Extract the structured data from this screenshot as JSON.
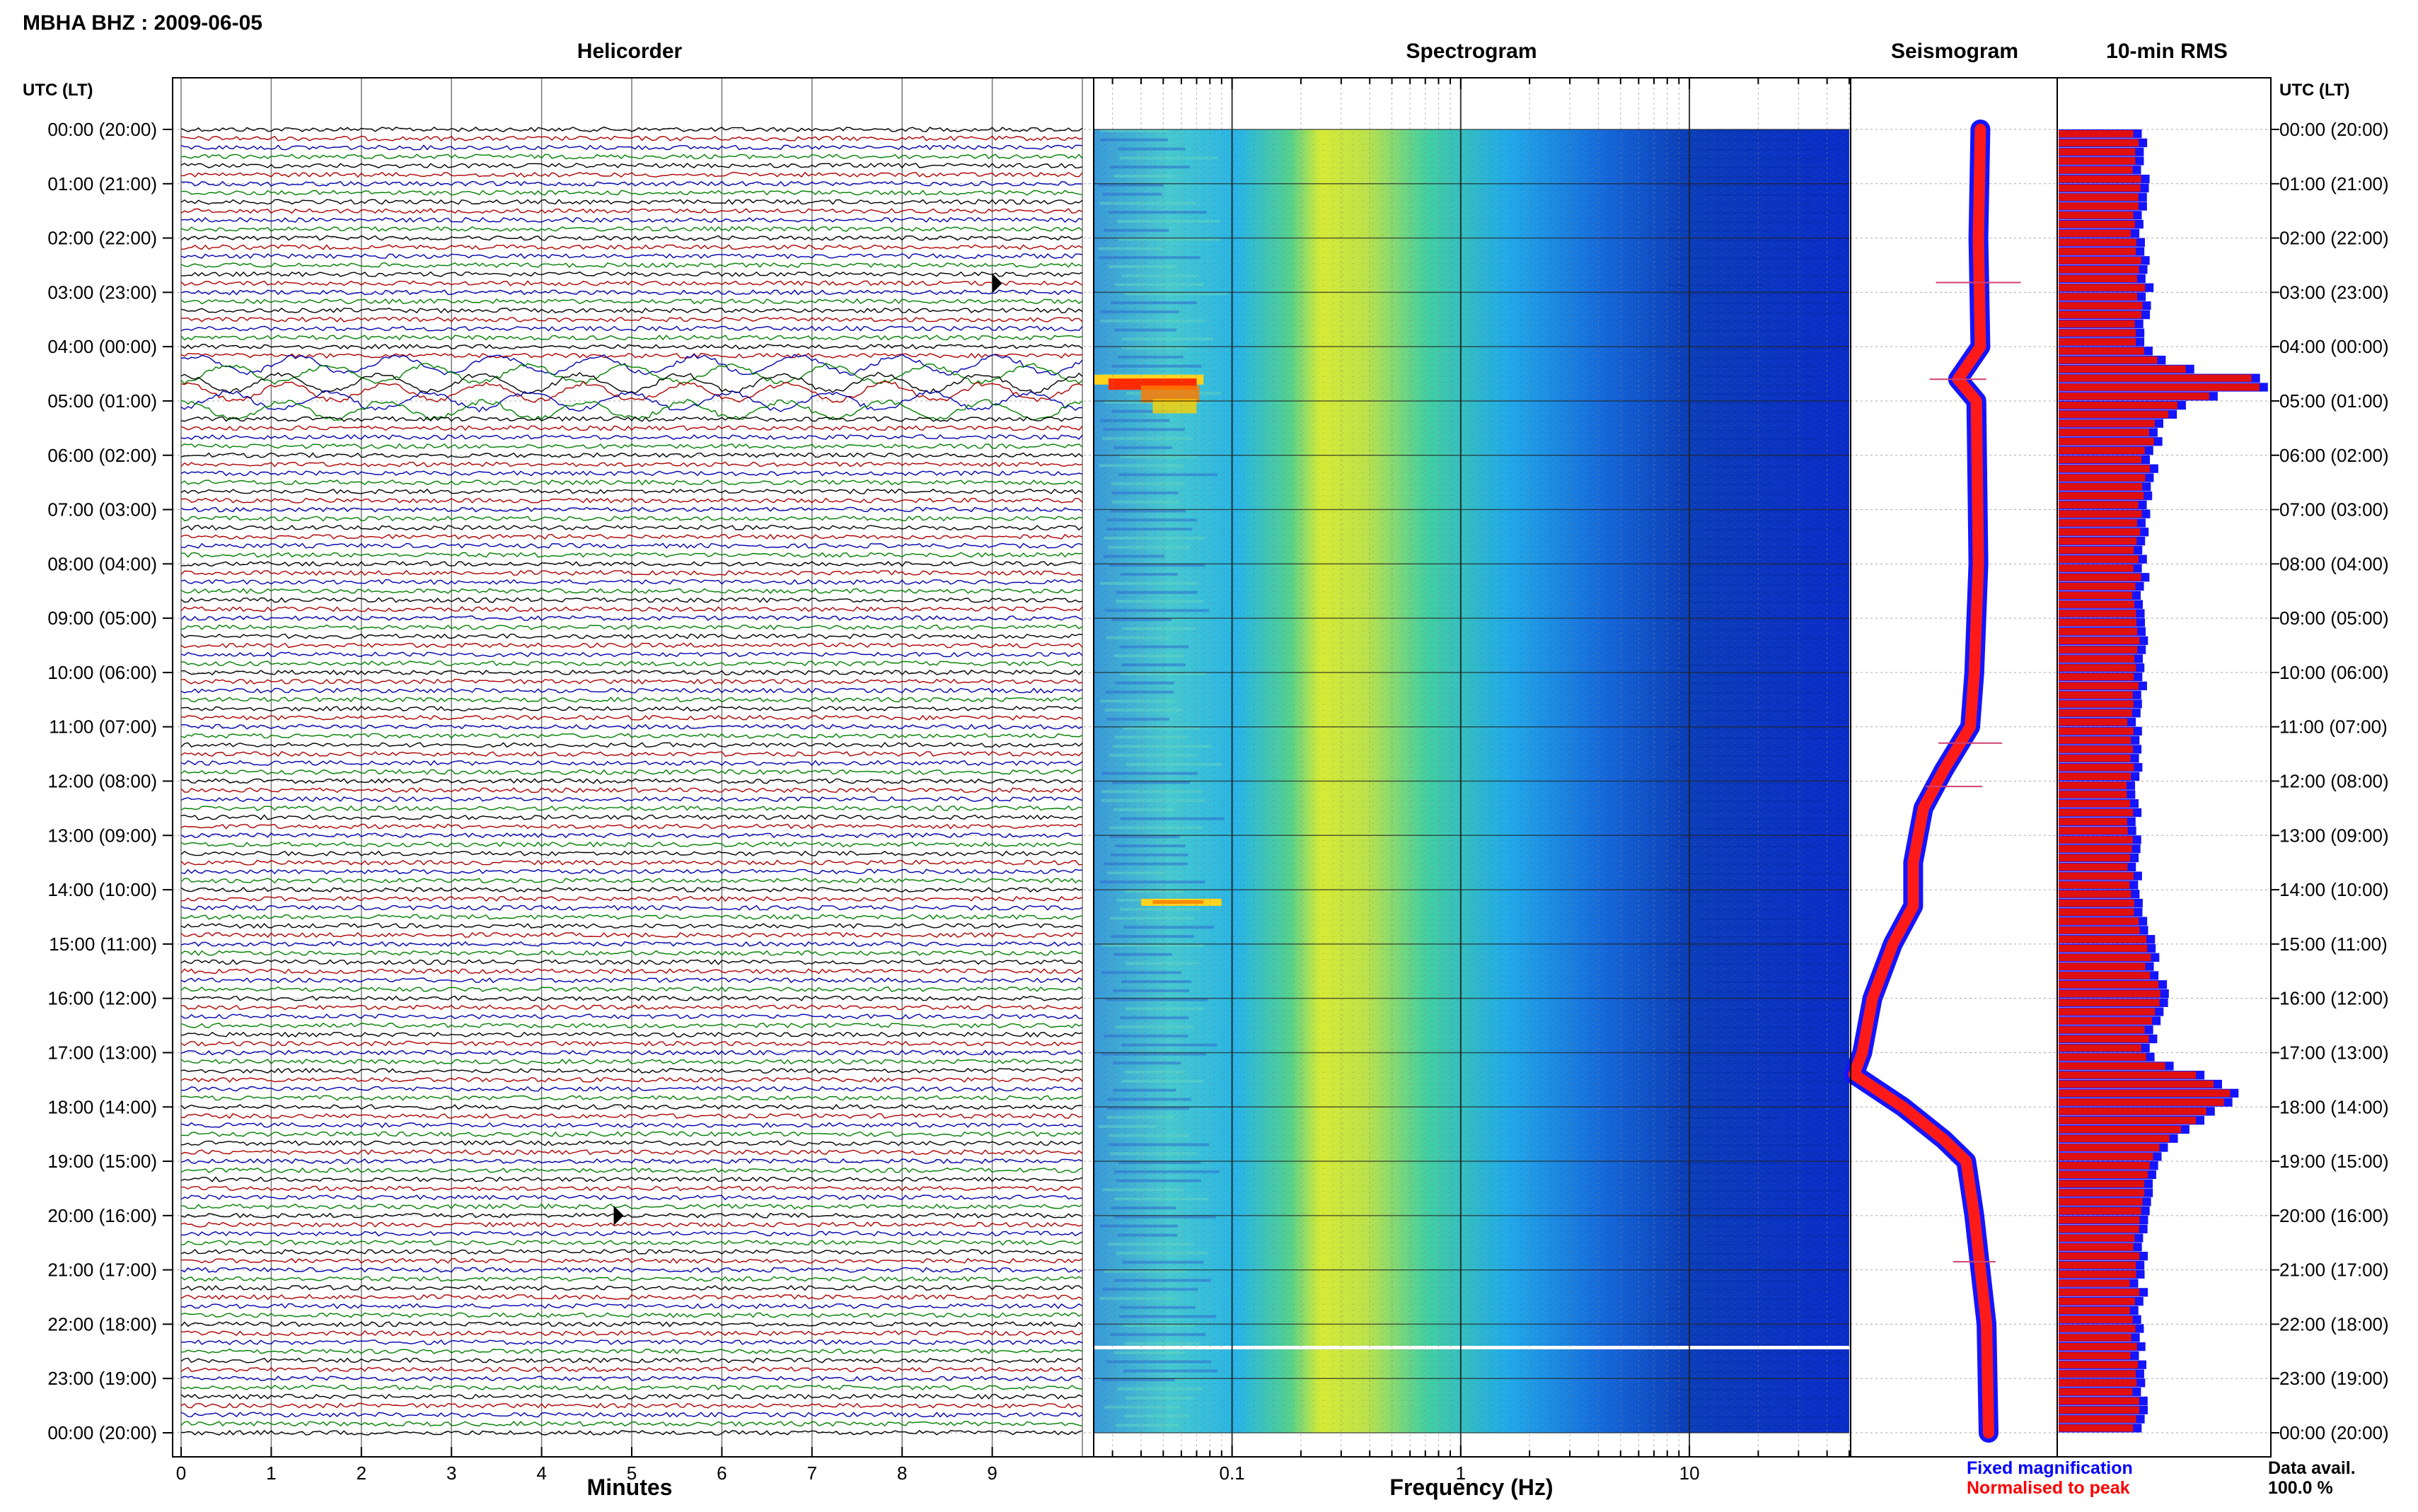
{
  "header": {
    "station_title": "MBHA BHZ : 2009-06-05",
    "utc_label_left": "UTC (LT)",
    "utc_label_right": "UTC (LT)"
  },
  "panels": {
    "helicorder": "Helicorder",
    "spectrogram": "Spectrogram",
    "seismogram": "Seismogram",
    "rms": "10-min RMS"
  },
  "time_labels": [
    "00:00 (20:00)",
    "01:00 (21:00)",
    "02:00 (22:00)",
    "03:00 (23:00)",
    "04:00 (00:00)",
    "05:00 (01:00)",
    "06:00 (02:00)",
    "07:00 (03:00)",
    "08:00 (04:00)",
    "09:00 (05:00)",
    "10:00 (06:00)",
    "11:00 (07:00)",
    "12:00 (08:00)",
    "13:00 (09:00)",
    "14:00 (10:00)",
    "15:00 (11:00)",
    "16:00 (12:00)",
    "17:00 (13:00)",
    "18:00 (14:00)",
    "19:00 (15:00)",
    "20:00 (16:00)",
    "21:00 (17:00)",
    "22:00 (18:00)",
    "23:00 (19:00)",
    "00:00 (20:00)"
  ],
  "axes": {
    "helicorder_xlabel": "Minutes",
    "helicorder_ticks": [
      "0",
      "1",
      "2",
      "3",
      "4",
      "5",
      "6",
      "7",
      "8",
      "9"
    ],
    "spectrogram_xlabel": "Frequency (Hz)",
    "spectrogram_ticks": [
      "0.1",
      "1",
      "10"
    ]
  },
  "legend": {
    "fixed": "Fixed magnification",
    "normalised": "Normalised to peak",
    "fixed_color": "#0000ff",
    "normalised_color": "#ff0000"
  },
  "availability": {
    "label": "Data avail.",
    "value": "100.0 %"
  },
  "chart_data": {
    "type": "heatmap",
    "trace_colors": [
      "#000000",
      "#b00000",
      "#0000b0",
      "#008000"
    ],
    "rows_per_hour": 6,
    "helicorder_xlim": [
      0,
      10
    ],
    "spectrogram_xlim_hz": [
      0.025,
      50
    ],
    "spectrogram_scale": "log",
    "events": [
      {
        "time_utc": "02:50",
        "minute": 9.0,
        "kind": "local event"
      },
      {
        "time_utc": "04:40",
        "kind": "teleseism",
        "spectral_peak_hz": 0.05
      },
      {
        "time_utc": "14:10",
        "kind": "long-period signal",
        "spectral_peak_hz": 0.05
      },
      {
        "time_utc": "20:00",
        "minute": 4.8,
        "kind": "spike"
      }
    ],
    "spectrogram_gap_utc": "22:30",
    "seismogram_envelope": [
      {
        "t": 0,
        "pos": 0.63
      },
      {
        "t": 2,
        "pos": 0.62
      },
      {
        "t": 4,
        "pos": 0.63
      },
      {
        "t": 4.6,
        "pos": 0.52
      },
      {
        "t": 5,
        "pos": 0.61
      },
      {
        "t": 8,
        "pos": 0.62
      },
      {
        "t": 10,
        "pos": 0.6
      },
      {
        "t": 11,
        "pos": 0.58
      },
      {
        "t": 11.8,
        "pos": 0.45
      },
      {
        "t": 12.5,
        "pos": 0.35
      },
      {
        "t": 13.5,
        "pos": 0.3
      },
      {
        "t": 14.3,
        "pos": 0.3
      },
      {
        "t": 15,
        "pos": 0.2
      },
      {
        "t": 16,
        "pos": 0.1
      },
      {
        "t": 17,
        "pos": 0.05
      },
      {
        "t": 17.4,
        "pos": 0.01
      },
      {
        "t": 18,
        "pos": 0.25
      },
      {
        "t": 18.6,
        "pos": 0.45
      },
      {
        "t": 19,
        "pos": 0.56
      },
      {
        "t": 20,
        "pos": 0.6
      },
      {
        "t": 21,
        "pos": 0.63
      },
      {
        "t": 22,
        "pos": 0.66
      },
      {
        "t": 24,
        "pos": 0.67
      }
    ],
    "rms_profile": [
      {
        "t": 0,
        "v": 0.4
      },
      {
        "t": 1,
        "v": 0.42
      },
      {
        "t": 2,
        "v": 0.4
      },
      {
        "t": 3,
        "v": 0.44
      },
      {
        "t": 4,
        "v": 0.38
      },
      {
        "t": 4.4,
        "v": 0.62
      },
      {
        "t": 4.55,
        "v": 0.95
      },
      {
        "t": 4.75,
        "v": 1.0
      },
      {
        "t": 5.0,
        "v": 0.62
      },
      {
        "t": 5.5,
        "v": 0.48
      },
      {
        "t": 7,
        "v": 0.42
      },
      {
        "t": 10,
        "v": 0.4
      },
      {
        "t": 12,
        "v": 0.38
      },
      {
        "t": 14,
        "v": 0.38
      },
      {
        "t": 15.5,
        "v": 0.48
      },
      {
        "t": 16,
        "v": 0.52
      },
      {
        "t": 17,
        "v": 0.42
      },
      {
        "t": 17.5,
        "v": 0.72
      },
      {
        "t": 17.8,
        "v": 0.88
      },
      {
        "t": 18.2,
        "v": 0.7
      },
      {
        "t": 18.8,
        "v": 0.5
      },
      {
        "t": 20,
        "v": 0.4
      },
      {
        "t": 24,
        "v": 0.4
      }
    ]
  }
}
